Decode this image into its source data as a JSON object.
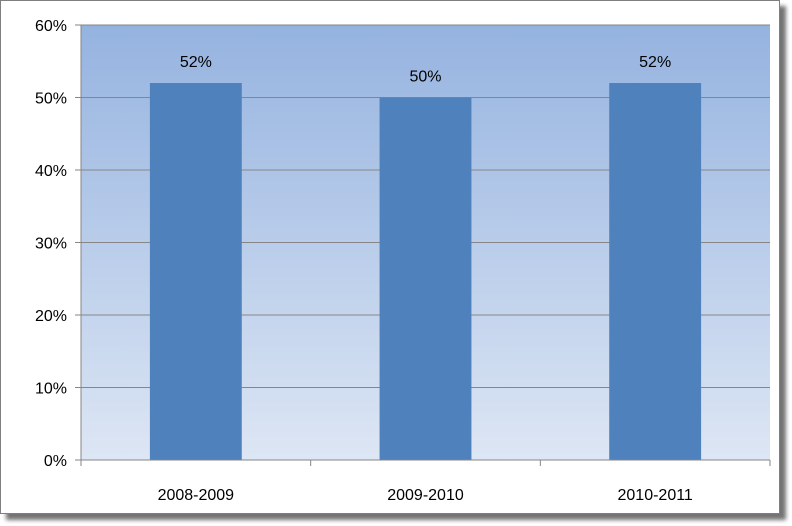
{
  "chart_data": {
    "type": "bar",
    "categories": [
      "2008-2009",
      "2009-2010",
      "2010-2011"
    ],
    "values": [
      52,
      50,
      52
    ],
    "data_labels": [
      "52%",
      "50%",
      "52%"
    ],
    "y_ticks": [
      "0%",
      "10%",
      "20%",
      "30%",
      "40%",
      "50%",
      "60%"
    ],
    "ylim": [
      0,
      60
    ],
    "grid": true,
    "legend": "none",
    "title": "",
    "xlabel": "",
    "ylabel": "",
    "colors": {
      "bar": "#4f81bd",
      "plot_bg_top": "#95b3e0",
      "plot_bg_bottom": "#dde6f4",
      "gridline": "#868686",
      "axis": "#868686"
    }
  }
}
